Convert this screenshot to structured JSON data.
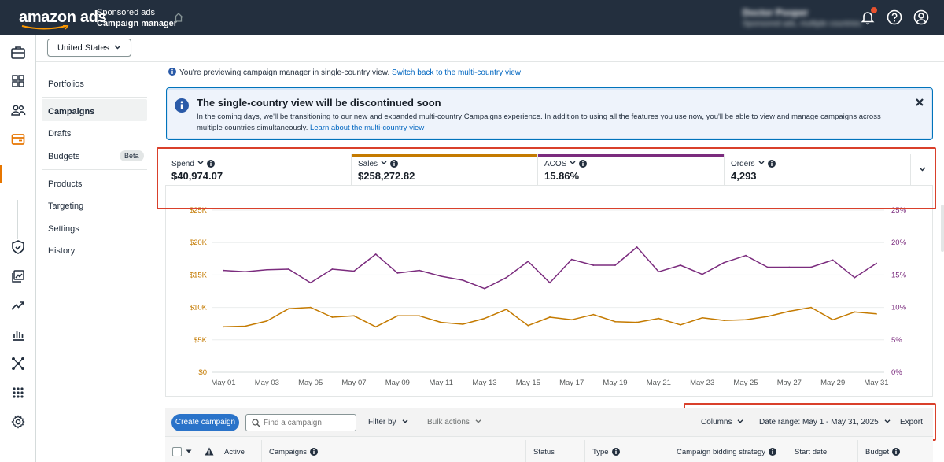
{
  "topbar": {
    "logo": "amazon ads",
    "product_sub": "Sponsored ads",
    "product_main": "Campaign manager",
    "account_name": "Doctor Pooper",
    "account_sub": "Sponsored ads, multiple countries"
  },
  "country": {
    "selected": "United States"
  },
  "subnav": {
    "items": [
      "Portfolios",
      "Campaigns",
      "Drafts",
      "Budgets",
      "Products",
      "Targeting",
      "Settings",
      "History"
    ],
    "active": "Campaigns",
    "beta_badge": "Beta"
  },
  "preview": {
    "text": "You're previewing campaign manager in single-country view.",
    "link": "Switch back to the multi-country view"
  },
  "alert": {
    "title": "The single-country view will be discontinued soon",
    "body": "In the coming days, we'll be transitioning to our new and expanded multi-country Campaigns experience. In addition to using all the features you use now, you'll be able to view and manage campaigns across multiple countries simultaneously.",
    "link": "Learn about the multi-country view"
  },
  "metrics": [
    {
      "label": "Spend",
      "value": "$40,974.07",
      "color": ""
    },
    {
      "label": "Sales",
      "value": "$258,272.82",
      "color": "#c47a00"
    },
    {
      "label": "ACOS",
      "value": "15.86%",
      "color": "#7b2c7e"
    },
    {
      "label": "Orders",
      "value": "4,293",
      "color": ""
    }
  ],
  "chart_data": {
    "type": "line",
    "x": [
      "May 01",
      "May 02",
      "May 03",
      "May 04",
      "May 05",
      "May 06",
      "May 07",
      "May 08",
      "May 09",
      "May 10",
      "May 11",
      "May 12",
      "May 13",
      "May 14",
      "May 15",
      "May 16",
      "May 17",
      "May 18",
      "May 19",
      "May 20",
      "May 21",
      "May 22",
      "May 23",
      "May 24",
      "May 25",
      "May 26",
      "May 27",
      "May 28",
      "May 29",
      "May 30",
      "May 31"
    ],
    "x_tick_labels": [
      "May 01",
      "May 03",
      "May 05",
      "May 07",
      "May 09",
      "May 11",
      "May 13",
      "May 15",
      "May 17",
      "May 19",
      "May 21",
      "May 23",
      "May 25",
      "May 27",
      "May 29",
      "May 31"
    ],
    "y_left_ticks": [
      "$0",
      "$5K",
      "$10K",
      "$15K",
      "$20K",
      "$25K"
    ],
    "y_left_lim": [
      0,
      25000
    ],
    "y_right_ticks": [
      "0%",
      "5%",
      "10%",
      "15%",
      "20%",
      "25%"
    ],
    "y_right_lim": [
      0,
      25
    ],
    "grid": true,
    "series": [
      {
        "name": "Sales",
        "axis": "left",
        "color": "#c47a00",
        "values": [
          7000,
          7100,
          7900,
          9800,
          10000,
          8500,
          8700,
          7000,
          8700,
          8700,
          7700,
          7400,
          8300,
          9700,
          7200,
          8500,
          8100,
          8900,
          7800,
          7700,
          8300,
          7300,
          8400,
          8000,
          8100,
          8600,
          9400,
          10000,
          8100,
          9300,
          9000
        ]
      },
      {
        "name": "ACOS",
        "axis": "right",
        "color": "#7b2c7e",
        "values": [
          15.7,
          15.5,
          15.8,
          15.9,
          13.8,
          15.9,
          15.6,
          18.2,
          15.3,
          15.7,
          14.8,
          14.2,
          12.9,
          14.6,
          17.1,
          13.8,
          17.4,
          16.5,
          16.5,
          19.3,
          15.5,
          16.5,
          15.1,
          16.9,
          18.0,
          16.2,
          16.2,
          16.2,
          17.3,
          14.6,
          16.8
        ]
      }
    ]
  },
  "toolbar": {
    "create": "Create campaign",
    "find_placeholder": "Find a campaign",
    "filter": "Filter by",
    "bulk": "Bulk actions",
    "columns": "Columns",
    "date_range": "Date range: May 1 - May 31, 2025",
    "export": "Export"
  },
  "table_headers": [
    "Active",
    "Campaigns",
    "Status",
    "Type",
    "Campaign bidding strategy",
    "Start date",
    "Budget"
  ]
}
